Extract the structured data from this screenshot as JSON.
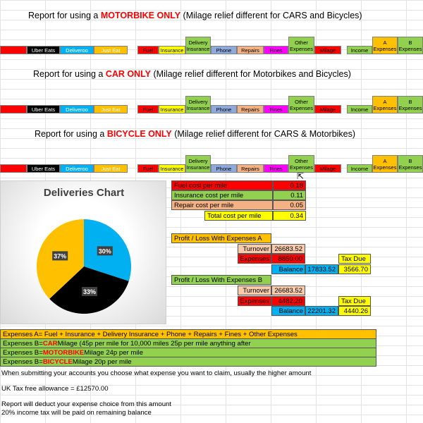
{
  "sections": [
    {
      "prefix": "Report for using a ",
      "highlight": "MOTORBIKE ONLY",
      "suffix": " (Milage relief different for CARS and Bicycles)"
    },
    {
      "prefix": "Report for using a ",
      "highlight": "CAR ONLY",
      "suffix": " (Milage relief different for Motorbikes and Bicycles)"
    },
    {
      "prefix": "Report for using a ",
      "highlight": "BICYCLE ONLY",
      "suffix": " (Milage relief different for CARS & Motorbikes)"
    }
  ],
  "header_cells": {
    "uber": "Uber Eats",
    "deliveroo": "Deliveroo",
    "justeat": "Just Eat",
    "fuel": "Fuel",
    "insurance": "Insurance",
    "delivery_top": "Delivery",
    "delivery_bottom": "Insurance",
    "phone": "Phone",
    "repairs": "Repairs",
    "fines": "Fines",
    "other_top": "Other",
    "other_bottom": "Expenses",
    "milage": "Milage",
    "income": "Income",
    "a_top": "A",
    "a_bottom": "Expenses",
    "b_top": "B",
    "b_bottom": "Expenses"
  },
  "colors": {
    "red": "#ff0000",
    "green": "#92d050",
    "blue": "#00b0f0",
    "orange": "#ffc000",
    "black": "#000000",
    "yellow": "#ffff00",
    "magenta": "#ff00ff",
    "grey": "#8ea9db",
    "peach": "#f8cbad",
    "tan": "#f4b183"
  },
  "chart": {
    "title": "Deliveries Chart",
    "chart_data": {
      "type": "pie",
      "categories": [
        "Uber Eats",
        "Deliveroo",
        "Just Eat"
      ],
      "values": [
        33,
        30,
        37
      ],
      "colors": [
        "#000000",
        "#00b0f0",
        "#ffc000"
      ],
      "labels": [
        "33%",
        "30%",
        "37%"
      ]
    }
  },
  "costs": [
    {
      "label": "Fuel cost per mile",
      "value": "0.18",
      "color": "#ff0000"
    },
    {
      "label": "Insurance cost per mile",
      "value": "0.11",
      "color": "#92d050"
    },
    {
      "label": "Repair cost per mile",
      "value": "0.05",
      "color": "#f4b183"
    }
  ],
  "total_cost": {
    "label": "Total cost per mile",
    "value": "0.34"
  },
  "profit_a": {
    "title": "Profit / Loss With Expenses A",
    "turnover_label": "Turnover",
    "turnover": "26683.52",
    "expenses_label": "Expenses",
    "expenses": "8850.00",
    "balance_label": "Balance",
    "balance": "17833.52",
    "tax_label": "Tax Due",
    "tax": "3566.70"
  },
  "profit_b": {
    "title": "Profit / Loss With Expenses B",
    "turnover_label": "Turnover",
    "turnover": "26683.52",
    "expenses_label": "Expenses",
    "expenses": "4482.20",
    "balance_label": "Balance",
    "balance": "22201.32",
    "tax_label": "Tax Due",
    "tax": "4440.26"
  },
  "notes": {
    "expenses_a": "Expenses A= Fuel + Insurance + Delivery Insurance + Phone + Repairs + Fines + Other Expenses",
    "car_prefix": "Expenses B= ",
    "car_hl": "CAR",
    "car_suffix": " Milage (45p per mile for 10,000 miles 25p per mile anything after",
    "moto_prefix": "Expenses B= ",
    "moto_hl": "MOTORBIKE",
    "moto_suffix": " Milage 24p per mile",
    "bike_prefix": "Expenses B= ",
    "bike_hl": "BICYCLE",
    "bike_suffix": " Milage 20p per mile",
    "submitting": "When submitting your accounts you choose what expense you want to claim, usually the higher amount",
    "allowance": "UK Tax free allowance = £12570.00",
    "deduct": "Report will deduct your expense choice from this amount",
    "income_tax": "20% income tax will be paid on remaining balance"
  }
}
